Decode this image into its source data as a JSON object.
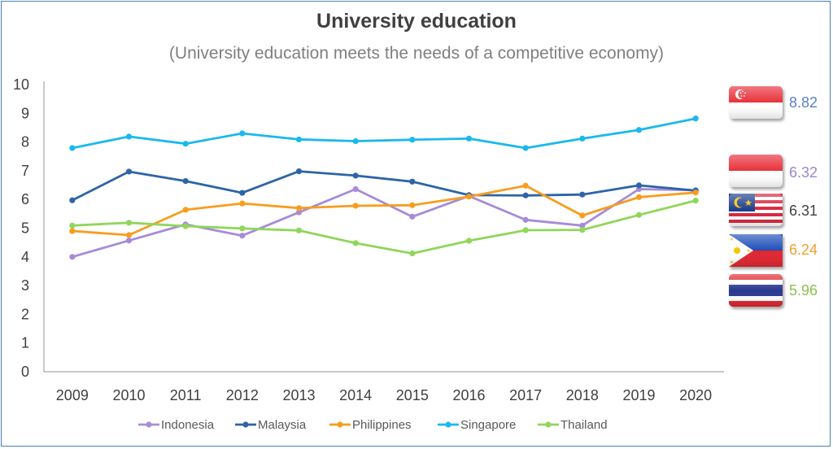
{
  "colors": {
    "Indonesia": "#a78bd8",
    "Malaysia": "#2e64a8",
    "Philippines": "#f79d1e",
    "Singapore": "#1ab8ee",
    "Thailand": "#8fd65a",
    "axis": "#a6a6a6",
    "frame": "#4a7ebb"
  },
  "flags": [
    {
      "country": "Singapore",
      "icon": "singapore-flag-icon",
      "value_label": "8.82",
      "color": "#5b7fcf"
    },
    {
      "country": "Indonesia",
      "icon": "indonesia-flag-icon",
      "value_label": "6.32",
      "color": "#9a86d0"
    },
    {
      "country": "Malaysia",
      "icon": "malaysia-flag-icon",
      "value_label": "6.31",
      "color": "#404040"
    },
    {
      "country": "Philippines",
      "icon": "philippines-flag-icon",
      "value_label": "6.24",
      "color": "#f0a030"
    },
    {
      "country": "Thailand",
      "icon": "thailand-flag-icon",
      "value_label": "5.96",
      "color": "#8cc04e"
    }
  ],
  "chart_data": {
    "type": "line",
    "title": "University education",
    "subtitle": "(University education meets the needs of a competitive economy)",
    "xlabel": "",
    "ylabel": "",
    "categories": [
      "2009",
      "2010",
      "2011",
      "2012",
      "2013",
      "2014",
      "2015",
      "2016",
      "2017",
      "2018",
      "2019",
      "2020"
    ],
    "ylim": [
      0,
      10
    ],
    "yticks": [
      0,
      1,
      2,
      3,
      4,
      5,
      6,
      7,
      8,
      9,
      10
    ],
    "grid": false,
    "legend_position": "bottom",
    "series": [
      {
        "name": "Indonesia",
        "values": [
          4.0,
          4.57,
          5.13,
          4.74,
          5.55,
          6.36,
          5.4,
          6.12,
          5.29,
          5.09,
          6.36,
          6.32
        ]
      },
      {
        "name": "Malaysia",
        "values": [
          5.97,
          6.97,
          6.64,
          6.23,
          6.98,
          6.83,
          6.62,
          6.15,
          6.14,
          6.17,
          6.49,
          6.31
        ]
      },
      {
        "name": "Philippines",
        "values": [
          4.9,
          4.76,
          5.64,
          5.86,
          5.7,
          5.78,
          5.8,
          6.1,
          6.48,
          5.44,
          6.08,
          6.24
        ]
      },
      {
        "name": "Singapore",
        "values": [
          7.79,
          8.19,
          7.94,
          8.3,
          8.09,
          8.03,
          8.08,
          8.12,
          7.79,
          8.12,
          8.42,
          8.82
        ]
      },
      {
        "name": "Thailand",
        "values": [
          5.09,
          5.19,
          5.07,
          4.99,
          4.92,
          4.48,
          4.12,
          4.56,
          4.93,
          4.94,
          5.46,
          5.96
        ]
      }
    ]
  }
}
